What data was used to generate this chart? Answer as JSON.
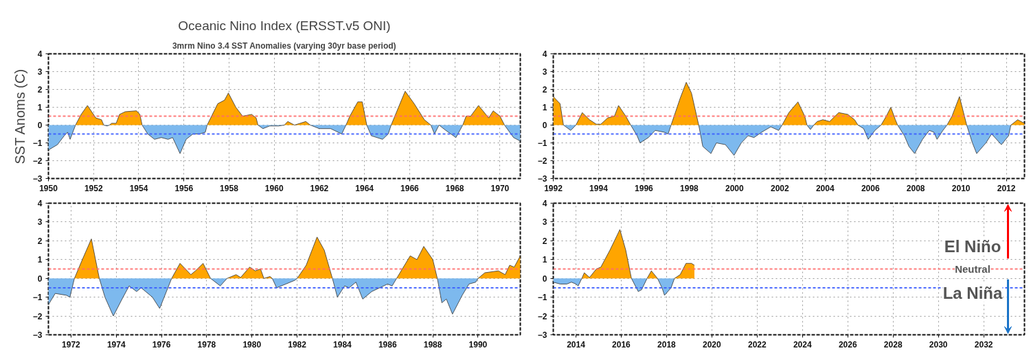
{
  "chart_data": [
    {
      "type": "area",
      "title": "Oceanic Nino Index (ERSST.v5 ONI)",
      "subtitle": "3mrm Nino 3.4 SST Anomalies (varying 30yr base period)",
      "ylabel": "SST Anoms (C)",
      "x": [
        1950.0,
        1950.4,
        1950.7,
        1950.85,
        1950.96,
        1951.2,
        1951.45,
        1951.73,
        1952.1,
        1952.35,
        1952.45,
        1952.6,
        1952.7,
        1952.8,
        1953.0,
        1953.15,
        1953.4,
        1953.9,
        1954.05,
        1954.15,
        1954.4,
        1954.7,
        1955.0,
        1955.3,
        1955.5,
        1955.83,
        1956.1,
        1956.4,
        1956.7,
        1956.95,
        1957.03,
        1957.5,
        1957.8,
        1957.97,
        1958.3,
        1958.6,
        1959.0,
        1959.2,
        1959.28,
        1959.5,
        1959.8,
        1960.2,
        1960.45,
        1960.6,
        1960.9,
        1961.4,
        1961.6,
        1962.0,
        1962.5,
        1962.99,
        1963.18,
        1963.35,
        1963.7,
        1963.9,
        1964.1,
        1964.3,
        1964.8,
        1965.05,
        1965.18,
        1965.8,
        1966.2,
        1966.65,
        1966.94,
        1967.1,
        1967.3,
        1967.6,
        1968.05,
        1968.35,
        1968.5,
        1968.7,
        1969.05,
        1969.5,
        1969.7,
        1970.0,
        1970.2,
        1970.6,
        1970.9
      ],
      "series": [
        {
          "color": "#ffa500",
          "values": [
            null,
            null,
            null,
            null,
            null,
            0,
            0.6,
            1.1,
            0.4,
            0.3,
            0,
            null,
            0,
            0.1,
            0.1,
            0.6,
            0.75,
            0.8,
            0.6,
            0,
            null,
            null,
            null,
            null,
            null,
            null,
            null,
            null,
            null,
            null,
            0,
            1.2,
            1.4,
            1.8,
            1.0,
            0.5,
            0.6,
            0.4,
            0,
            null,
            null,
            null,
            0,
            0.2,
            0,
            0.2,
            0,
            null,
            null,
            null,
            0,
            0.5,
            1.3,
            1.3,
            0,
            null,
            null,
            null,
            0,
            1.9,
            1.2,
            0.3,
            0,
            null,
            null,
            null,
            null,
            0,
            0.5,
            0.5,
            1.1,
            0.4,
            0.8,
            0.5,
            0,
            null,
            null
          ]
        },
        {
          "color": "#7db9ee",
          "values": [
            -1.4,
            -1.1,
            -0.6,
            -0.4,
            -0.8,
            0,
            null,
            null,
            null,
            null,
            0,
            -0.05,
            0,
            null,
            null,
            null,
            null,
            null,
            null,
            0,
            -0.5,
            -0.8,
            -0.7,
            -0.8,
            -0.7,
            -1.6,
            -0.8,
            -0.5,
            -0.5,
            -0.4,
            0,
            null,
            null,
            null,
            null,
            null,
            null,
            null,
            0,
            -0.2,
            -0.05,
            -0.05,
            0,
            null,
            null,
            null,
            0,
            -0.2,
            -0.2,
            -0.5,
            0,
            null,
            null,
            null,
            0,
            -0.6,
            -0.8,
            -0.5,
            0,
            null,
            null,
            null,
            0,
            -0.5,
            0,
            -0.3,
            -0.7,
            0,
            null,
            null,
            null,
            null,
            null,
            null,
            0,
            -0.7,
            -0.9
          ]
        }
      ],
      "xlim": [
        1950,
        1970.9
      ],
      "xticks": [
        1950,
        1952,
        1954,
        1956,
        1958,
        1960,
        1962,
        1964,
        1966,
        1968,
        1970
      ],
      "ylim": [
        -3,
        4
      ],
      "yticks": [
        -3,
        -2,
        -1,
        0,
        1,
        2,
        3,
        4
      ],
      "grid": true,
      "ref_lines": [
        {
          "axis": "y",
          "value": 0.5,
          "color": "#ff6b6b",
          "line_style": "dashed"
        },
        {
          "axis": "y",
          "value": -0.5,
          "color": "#3a5cff",
          "line_style": "dashed"
        }
      ]
    },
    {
      "type": "area",
      "x": [
        1992.0,
        1992.3,
        1992.45,
        1992.77,
        1993.0,
        1993.28,
        1993.6,
        1993.9,
        1994.1,
        1994.4,
        1994.7,
        1994.88,
        1995.2,
        1995.42,
        1995.7,
        1995.83,
        1996.2,
        1996.5,
        1996.9,
        1997.07,
        1997.2,
        1997.6,
        1997.87,
        1998.1,
        1998.42,
        1998.6,
        1998.96,
        1999.2,
        1999.6,
        1999.98,
        2000.3,
        2000.6,
        2000.86,
        2001.2,
        2001.6,
        2001.95,
        2002.1,
        2002.4,
        2002.8,
        2003.1,
        2003.2,
        2003.35,
        2003.5,
        2003.65,
        2003.9,
        2004.2,
        2004.6,
        2005.0,
        2005.3,
        2005.45,
        2005.7,
        2005.9,
        2006.2,
        2006.47,
        2006.7,
        2006.9,
        2007.1,
        2007.2,
        2007.5,
        2007.7,
        2007.95,
        2008.3,
        2008.6,
        2008.8,
        2008.94,
        2009.2,
        2009.38,
        2009.6,
        2009.93,
        2010.15,
        2010.25,
        2010.5,
        2010.69,
        2011.1,
        2011.35,
        2011.78,
        2012.1,
        2012.2,
        2012.5,
        2012.8
      ],
      "series": [
        {
          "color": "#ffa500",
          "values": [
            1.6,
            1.2,
            0,
            null,
            0,
            0.7,
            0.3,
            0.05,
            0.05,
            0.4,
            0.5,
            1.1,
            0.5,
            0,
            null,
            null,
            null,
            null,
            null,
            null,
            0,
            1.5,
            2.4,
            1.8,
            0,
            null,
            null,
            null,
            null,
            null,
            null,
            null,
            null,
            null,
            null,
            null,
            0,
            0.7,
            1.3,
            0.5,
            0,
            null,
            0,
            0.2,
            0.3,
            0.2,
            0.7,
            0.6,
            0.3,
            0,
            null,
            null,
            null,
            0,
            0.5,
            1.0,
            0.3,
            0,
            null,
            null,
            null,
            null,
            null,
            null,
            null,
            null,
            0,
            0.5,
            1.6,
            0.5,
            0,
            null,
            null,
            null,
            null,
            null,
            null,
            0,
            0.3,
            0.1
          ]
        },
        {
          "color": "#7db9ee",
          "values": [
            null,
            null,
            0,
            -0.3,
            0,
            null,
            null,
            null,
            null,
            null,
            null,
            null,
            null,
            0,
            -0.6,
            -1.0,
            -0.7,
            -0.3,
            -0.4,
            -0.5,
            0,
            null,
            null,
            null,
            0,
            -1.2,
            -1.6,
            -1.0,
            -1.1,
            -1.7,
            -1.0,
            -0.6,
            -0.7,
            -0.4,
            -0.1,
            -0.3,
            0,
            null,
            null,
            null,
            0,
            -0.25,
            0,
            null,
            null,
            null,
            null,
            null,
            null,
            0,
            -0.2,
            -0.8,
            -0.3,
            0,
            null,
            null,
            null,
            0,
            -0.6,
            -1.2,
            -1.6,
            -0.8,
            -0.3,
            -0.4,
            -0.8,
            -0.3,
            0,
            null,
            null,
            null,
            0,
            -1.0,
            -1.6,
            -1.0,
            -0.5,
            -1.1,
            -0.6,
            0,
            null,
            null
          ]
        }
      ],
      "xlim": [
        1992,
        2012.8
      ],
      "xticks": [
        1992,
        1994,
        1996,
        1998,
        2000,
        2002,
        2004,
        2006,
        2008,
        2010,
        2012
      ],
      "ylim": [
        -3,
        4
      ],
      "yticks": [
        -3,
        -2,
        -1,
        0,
        1,
        2,
        3,
        4
      ],
      "grid": true,
      "ref_lines": [
        {
          "axis": "y",
          "value": 0.5,
          "color": "#ff6b6b",
          "line_style": "dashed"
        },
        {
          "axis": "y",
          "value": -0.5,
          "color": "#3a5cff",
          "line_style": "dashed"
        }
      ]
    },
    {
      "type": "area",
      "x": [
        1971.0,
        1971.3,
        1971.8,
        1971.95,
        1972.15,
        1972.5,
        1972.9,
        1973.25,
        1973.5,
        1973.87,
        1974.3,
        1974.57,
        1974.9,
        1975.1,
        1975.6,
        1975.92,
        1976.45,
        1976.82,
        1977.3,
        1977.5,
        1977.84,
        1978.17,
        1978.6,
        1978.9,
        1979.3,
        1979.5,
        1979.9,
        1980.15,
        1980.38,
        1980.53,
        1980.8,
        1980.9,
        1981.09,
        1981.5,
        1981.9,
        1982.0,
        1982.4,
        1982.88,
        1983.2,
        1983.56,
        1983.78,
        1984.1,
        1984.3,
        1984.6,
        1984.9,
        1985.3,
        1986.0,
        1986.2,
        1986.4,
        1987.0,
        1987.3,
        1987.6,
        1988.0,
        1988.2,
        1988.4,
        1988.6,
        1988.87,
        1989.3,
        1989.6,
        1989.9,
        1990.0,
        1990.3,
        1990.9,
        1991.2,
        1991.4,
        1991.6,
        1991.87
      ],
      "series": [
        {
          "color": "#ffa500",
          "values": [
            null,
            null,
            null,
            null,
            0,
            1.0,
            2.1,
            0,
            null,
            null,
            null,
            null,
            null,
            null,
            null,
            null,
            0,
            0.8,
            0.2,
            0.4,
            0.8,
            0,
            null,
            0,
            0.2,
            0.05,
            0.6,
            0.4,
            0.5,
            0,
            0.1,
            0,
            null,
            null,
            null,
            0,
            0.7,
            2.2,
            1.5,
            0,
            null,
            null,
            null,
            null,
            null,
            null,
            null,
            null,
            0,
            1.2,
            1.0,
            1.7,
            1.0,
            0,
            null,
            null,
            null,
            null,
            null,
            null,
            0,
            0.3,
            0.4,
            0.2,
            0.7,
            0.6,
            1.2
          ]
        },
        {
          "color": "#7db9ee",
          "values": [
            -1.4,
            -0.8,
            -0.9,
            -1.0,
            0,
            null,
            null,
            0,
            -1.0,
            -2.0,
            -1.0,
            -0.4,
            -0.7,
            -0.5,
            -1.0,
            -1.6,
            0,
            null,
            null,
            null,
            null,
            0,
            -0.4,
            0,
            null,
            null,
            null,
            null,
            null,
            null,
            null,
            0,
            -0.5,
            -0.3,
            -0.1,
            0,
            null,
            null,
            null,
            0,
            -1.0,
            -0.4,
            -0.5,
            -0.2,
            -1.1,
            -0.7,
            -0.3,
            -0.4,
            0,
            null,
            null,
            null,
            null,
            0,
            -1.3,
            -1.1,
            -1.9,
            -0.9,
            -0.3,
            -0.2,
            0,
            null,
            null,
            null,
            null,
            null,
            null
          ]
        }
      ],
      "xlim": [
        1971,
        1991.87
      ],
      "xticks": [
        1972,
        1974,
        1976,
        1978,
        1980,
        1982,
        1984,
        1986,
        1988,
        1990
      ],
      "ylim": [
        -3,
        4
      ],
      "yticks": [
        -3,
        -2,
        -1,
        0,
        1,
        2,
        3,
        4
      ],
      "grid": true,
      "ref_lines": [
        {
          "axis": "y",
          "value": 0.5,
          "color": "#ff6b6b",
          "line_style": "dashed"
        },
        {
          "axis": "y",
          "value": -0.5,
          "color": "#3a5cff",
          "line_style": "dashed"
        }
      ]
    },
    {
      "type": "area",
      "x": [
        2013.0,
        2013.3,
        2013.6,
        2013.8,
        2014.0,
        2014.1,
        2014.26,
        2014.37,
        2014.6,
        2014.9,
        2015.1,
        2015.5,
        2015.94,
        2016.2,
        2016.45,
        2016.75,
        2016.9,
        2017.14,
        2017.33,
        2017.6,
        2017.8,
        2017.91,
        2018.2,
        2018.35,
        2018.6,
        2018.86,
        2019.1,
        2019.23
      ],
      "series": [
        {
          "color": "#ffa500",
          "values": [
            null,
            null,
            null,
            null,
            null,
            null,
            0,
            0.3,
            0.05,
            0.5,
            0.6,
            1.5,
            2.6,
            1.5,
            0,
            null,
            null,
            0,
            0.4,
            0,
            null,
            null,
            null,
            0,
            0.2,
            0.8,
            0.8,
            0.7
          ]
        },
        {
          "color": "#7db9ee",
          "values": [
            -0.2,
            -0.3,
            -0.3,
            -0.2,
            -0.3,
            -0.4,
            0,
            null,
            null,
            null,
            null,
            null,
            null,
            null,
            0,
            -0.7,
            -0.6,
            0,
            null,
            0,
            -0.5,
            -0.9,
            -0.5,
            0,
            null,
            null,
            null,
            null
          ]
        }
      ],
      "xlim": [
        2013,
        2033.8
      ],
      "xticks": [
        2014,
        2016,
        2018,
        2020,
        2022,
        2024,
        2026,
        2028,
        2030,
        2032
      ],
      "ylim": [
        -3,
        4
      ],
      "yticks": [
        -3,
        -2,
        -1,
        0,
        1,
        2,
        3,
        4
      ],
      "grid": true,
      "ref_lines": [
        {
          "axis": "y",
          "value": 0.5,
          "color": "#ff6b6b",
          "line_style": "dashed"
        },
        {
          "axis": "y",
          "value": -0.5,
          "color": "#3a5cff",
          "line_style": "dashed"
        }
      ],
      "annotations": [
        "El Niño",
        "Neutral",
        "La Niña"
      ]
    }
  ]
}
